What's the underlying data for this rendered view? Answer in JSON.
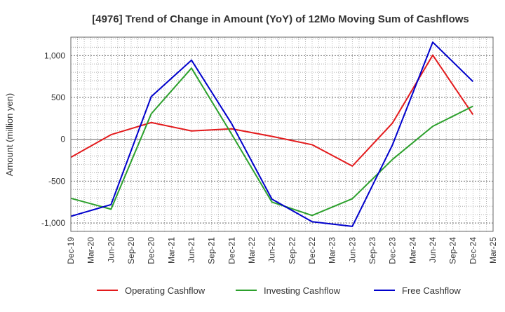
{
  "chart_data": {
    "type": "line",
    "title": "[4976]  Trend of Change in Amount (YoY) of 12Mo Moving Sum of Cashflows",
    "xlabel": "",
    "ylabel": "Amount (million yen)",
    "ylim": [
      -1100,
      1220
    ],
    "yticks": [
      -1000,
      -500,
      0,
      500,
      1000
    ],
    "ytick_labels": [
      "-1,000",
      "-500",
      "0",
      "500",
      "1,000"
    ],
    "categories": [
      "Dec-19",
      "Mar-20",
      "Jun-20",
      "Sep-20",
      "Dec-20",
      "Mar-21",
      "Jun-21",
      "Sep-21",
      "Dec-21",
      "Mar-22",
      "Jun-22",
      "Sep-22",
      "Dec-22",
      "Mar-23",
      "Jun-23",
      "Sep-23",
      "Dec-23",
      "Mar-24",
      "Jun-24",
      "Sep-24",
      "Dec-24",
      "Mar-25"
    ],
    "grid": true,
    "legend_position": "bottom",
    "series": [
      {
        "name": "Operating Cashflow",
        "color": "#e31a1c",
        "points": [
          {
            "x": "Dec-19",
            "y": -215
          },
          {
            "x": "Jun-20",
            "y": 55
          },
          {
            "x": "Dec-20",
            "y": 200
          },
          {
            "x": "Jun-21",
            "y": 100
          },
          {
            "x": "Dec-21",
            "y": 125
          },
          {
            "x": "Jun-22",
            "y": 35
          },
          {
            "x": "Dec-22",
            "y": -65
          },
          {
            "x": "Jun-23",
            "y": -320
          },
          {
            "x": "Dec-23",
            "y": 195
          },
          {
            "x": "Jun-24",
            "y": 1005
          },
          {
            "x": "Dec-24",
            "y": 295
          }
        ]
      },
      {
        "name": "Investing Cashflow",
        "color": "#2ca02c",
        "points": [
          {
            "x": "Dec-19",
            "y": -705
          },
          {
            "x": "Jun-20",
            "y": -835
          },
          {
            "x": "Dec-20",
            "y": 305
          },
          {
            "x": "Jun-21",
            "y": 850
          },
          {
            "x": "Dec-21",
            "y": 60
          },
          {
            "x": "Jun-22",
            "y": -750
          },
          {
            "x": "Dec-22",
            "y": -910
          },
          {
            "x": "Jun-23",
            "y": -710
          },
          {
            "x": "Dec-23",
            "y": -240
          },
          {
            "x": "Jun-24",
            "y": 155
          },
          {
            "x": "Dec-24",
            "y": 395
          }
        ]
      },
      {
        "name": "Free Cashflow",
        "color": "#0000cc",
        "points": [
          {
            "x": "Dec-19",
            "y": -920
          },
          {
            "x": "Jun-20",
            "y": -780
          },
          {
            "x": "Dec-20",
            "y": 510
          },
          {
            "x": "Jun-21",
            "y": 945
          },
          {
            "x": "Dec-21",
            "y": 185
          },
          {
            "x": "Jun-22",
            "y": -715
          },
          {
            "x": "Dec-22",
            "y": -985
          },
          {
            "x": "Jun-23",
            "y": -1040
          },
          {
            "x": "Dec-23",
            "y": -65
          },
          {
            "x": "Jun-24",
            "y": 1160
          },
          {
            "x": "Dec-24",
            "y": 690
          }
        ]
      }
    ]
  }
}
